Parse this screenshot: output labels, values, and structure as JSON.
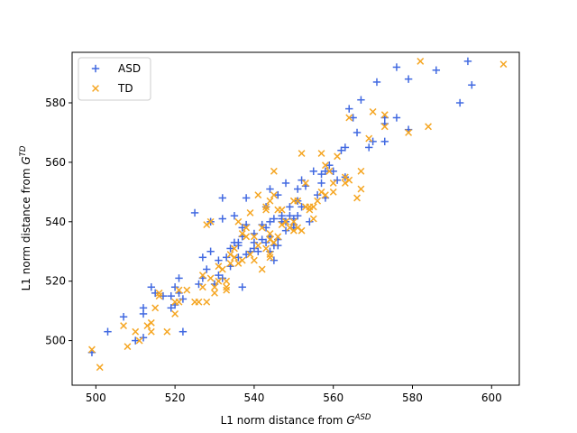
{
  "chart_data": {
    "type": "scatter",
    "xlabel": "L1 norm distance from G^ASD",
    "xlabel_parts": {
      "text": "L1 norm distance from ",
      "base": "G",
      "sup": "ASD"
    },
    "ylabel": "L1 norm distance from G^TD",
    "ylabel_parts": {
      "text": "L1 norm distance from ",
      "base": "G",
      "sup": "TD"
    },
    "xlim": [
      494,
      607
    ],
    "ylim": [
      485,
      597
    ],
    "xticks": [
      500,
      520,
      540,
      560,
      580,
      600
    ],
    "yticks": [
      500,
      520,
      540,
      560,
      580
    ],
    "grid": false,
    "legend_position": "upper-left",
    "series": [
      {
        "name": "ASD",
        "marker": "plus",
        "color": "#4169e1",
        "points": [
          [
            499,
            496
          ],
          [
            503,
            503
          ],
          [
            507,
            508
          ],
          [
            510,
            500
          ],
          [
            512,
            501
          ],
          [
            512,
            509
          ],
          [
            512,
            511
          ],
          [
            514,
            518
          ],
          [
            515,
            516
          ],
          [
            517,
            515
          ],
          [
            519,
            515
          ],
          [
            519,
            511
          ],
          [
            520,
            512
          ],
          [
            520,
            518
          ],
          [
            521,
            521
          ],
          [
            521,
            516
          ],
          [
            522,
            514
          ],
          [
            522,
            503
          ],
          [
            525,
            543
          ],
          [
            526,
            519
          ],
          [
            527,
            521
          ],
          [
            527,
            528
          ],
          [
            528,
            524
          ],
          [
            529,
            540
          ],
          [
            529,
            530
          ],
          [
            530,
            519
          ],
          [
            531,
            527
          ],
          [
            531,
            522
          ],
          [
            532,
            521
          ],
          [
            532,
            541
          ],
          [
            532,
            548
          ],
          [
            533,
            528
          ],
          [
            534,
            531
          ],
          [
            534,
            525
          ],
          [
            535,
            542
          ],
          [
            535,
            533
          ],
          [
            536,
            533
          ],
          [
            536,
            532
          ],
          [
            536,
            528
          ],
          [
            537,
            518
          ],
          [
            537,
            535
          ],
          [
            537,
            538
          ],
          [
            538,
            548
          ],
          [
            538,
            529
          ],
          [
            538,
            539
          ],
          [
            539,
            530
          ],
          [
            540,
            533
          ],
          [
            540,
            536
          ],
          [
            540,
            531
          ],
          [
            541,
            530
          ],
          [
            542,
            539
          ],
          [
            542,
            534
          ],
          [
            543,
            538
          ],
          [
            543,
            533
          ],
          [
            543,
            545
          ],
          [
            544,
            540
          ],
          [
            544,
            535
          ],
          [
            544,
            530
          ],
          [
            544,
            551
          ],
          [
            545,
            527
          ],
          [
            545,
            532
          ],
          [
            545,
            541
          ],
          [
            546,
            534
          ],
          [
            546,
            549
          ],
          [
            546,
            532
          ],
          [
            547,
            542
          ],
          [
            547,
            541
          ],
          [
            547,
            540
          ],
          [
            548,
            553
          ],
          [
            548,
            537
          ],
          [
            548,
            540
          ],
          [
            549,
            545
          ],
          [
            549,
            542
          ],
          [
            550,
            538
          ],
          [
            550,
            541
          ],
          [
            550,
            539
          ],
          [
            551,
            547
          ],
          [
            551,
            542
          ],
          [
            551,
            551
          ],
          [
            552,
            545
          ],
          [
            552,
            554
          ],
          [
            553,
            552
          ],
          [
            554,
            540
          ],
          [
            555,
            557
          ],
          [
            556,
            549
          ],
          [
            557,
            553
          ],
          [
            557,
            556
          ],
          [
            558,
            557
          ],
          [
            558,
            548
          ],
          [
            559,
            559
          ],
          [
            560,
            557
          ],
          [
            561,
            554
          ],
          [
            562,
            564
          ],
          [
            563,
            565
          ],
          [
            563,
            555
          ],
          [
            564,
            578
          ],
          [
            565,
            575
          ],
          [
            566,
            570
          ],
          [
            567,
            581
          ],
          [
            569,
            565
          ],
          [
            570,
            567
          ],
          [
            571,
            587
          ],
          [
            573,
            575
          ],
          [
            573,
            573
          ],
          [
            573,
            567
          ],
          [
            576,
            592
          ],
          [
            576,
            575
          ],
          [
            579,
            571
          ],
          [
            579,
            588
          ],
          [
            586,
            591
          ],
          [
            592,
            580
          ],
          [
            594,
            594
          ],
          [
            595,
            586
          ]
        ]
      },
      {
        "name": "TD",
        "marker": "x",
        "color": "#f5a623",
        "points": [
          [
            499,
            497
          ],
          [
            501,
            491
          ],
          [
            507,
            505
          ],
          [
            508,
            498
          ],
          [
            510,
            503
          ],
          [
            511,
            500
          ],
          [
            513,
            505
          ],
          [
            514,
            503
          ],
          [
            514,
            506
          ],
          [
            515,
            511
          ],
          [
            516,
            516
          ],
          [
            516,
            515
          ],
          [
            518,
            503
          ],
          [
            520,
            513
          ],
          [
            520,
            509
          ],
          [
            521,
            513
          ],
          [
            521,
            517
          ],
          [
            523,
            517
          ],
          [
            525,
            513
          ],
          [
            526,
            513
          ],
          [
            527,
            518
          ],
          [
            527,
            522
          ],
          [
            528,
            513
          ],
          [
            528,
            539
          ],
          [
            529,
            540
          ],
          [
            529,
            521
          ],
          [
            530,
            516
          ],
          [
            530,
            518
          ],
          [
            531,
            525
          ],
          [
            531,
            520
          ],
          [
            532,
            524
          ],
          [
            533,
            518
          ],
          [
            533,
            520
          ],
          [
            533,
            517
          ],
          [
            534,
            529
          ],
          [
            534,
            526
          ],
          [
            535,
            528
          ],
          [
            535,
            531
          ],
          [
            536,
            526
          ],
          [
            536,
            540
          ],
          [
            537,
            527
          ],
          [
            537,
            536
          ],
          [
            538,
            538
          ],
          [
            538,
            535
          ],
          [
            539,
            529
          ],
          [
            539,
            543
          ],
          [
            540,
            535
          ],
          [
            540,
            527
          ],
          [
            541,
            532
          ],
          [
            541,
            549
          ],
          [
            542,
            524
          ],
          [
            542,
            538
          ],
          [
            543,
            545
          ],
          [
            543,
            544
          ],
          [
            543,
            531
          ],
          [
            544,
            529
          ],
          [
            544,
            534
          ],
          [
            544,
            547
          ],
          [
            544,
            536
          ],
          [
            544,
            528
          ],
          [
            545,
            549
          ],
          [
            545,
            533
          ],
          [
            545,
            557
          ],
          [
            546,
            544
          ],
          [
            546,
            535
          ],
          [
            547,
            539
          ],
          [
            547,
            544
          ],
          [
            548,
            540
          ],
          [
            548,
            540
          ],
          [
            549,
            538
          ],
          [
            550,
            537
          ],
          [
            550,
            547
          ],
          [
            550,
            540
          ],
          [
            551,
            538
          ],
          [
            551,
            547
          ],
          [
            552,
            537
          ],
          [
            552,
            563
          ],
          [
            553,
            553
          ],
          [
            553,
            545
          ],
          [
            554,
            545
          ],
          [
            554,
            544
          ],
          [
            555,
            545
          ],
          [
            555,
            541
          ],
          [
            556,
            547
          ],
          [
            557,
            563
          ],
          [
            557,
            550
          ],
          [
            558,
            559
          ],
          [
            558,
            549
          ],
          [
            559,
            557
          ],
          [
            560,
            550
          ],
          [
            560,
            553
          ],
          [
            561,
            562
          ],
          [
            563,
            553
          ],
          [
            563,
            555
          ],
          [
            564,
            575
          ],
          [
            564,
            554
          ],
          [
            566,
            548
          ],
          [
            567,
            557
          ],
          [
            567,
            551
          ],
          [
            569,
            568
          ],
          [
            570,
            577
          ],
          [
            573,
            572
          ],
          [
            573,
            576
          ],
          [
            579,
            570
          ],
          [
            582,
            594
          ],
          [
            584,
            572
          ],
          [
            603,
            593
          ]
        ]
      }
    ]
  }
}
